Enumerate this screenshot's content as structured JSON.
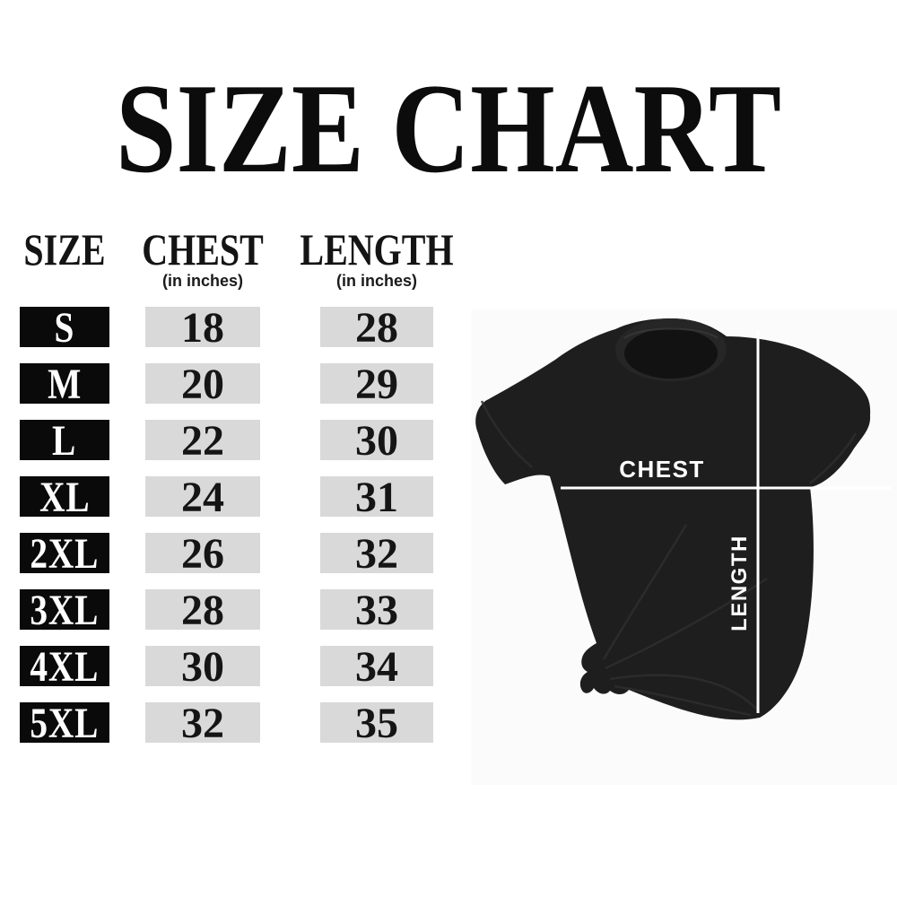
{
  "title": "SIZE CHART",
  "table": {
    "headers": [
      {
        "label": "SIZE",
        "sublabel": ""
      },
      {
        "label": "CHEST",
        "sublabel": "(in inches)"
      },
      {
        "label": "LENGTH",
        "sublabel": "(in inches)"
      }
    ],
    "rows": [
      {
        "size": "S",
        "chest": "18",
        "length": "28"
      },
      {
        "size": "M",
        "chest": "20",
        "length": "29"
      },
      {
        "size": "L",
        "chest": "22",
        "length": "30"
      },
      {
        "size": "XL",
        "chest": "24",
        "length": "31"
      },
      {
        "size": "2XL",
        "chest": "26",
        "length": "32"
      },
      {
        "size": "3XL",
        "chest": "28",
        "length": "33"
      },
      {
        "size": "4XL",
        "chest": "30",
        "length": "34"
      },
      {
        "size": "5XL",
        "chest": "32",
        "length": "35"
      }
    ]
  },
  "diagram": {
    "chest_label": "CHEST",
    "length_label": "LENGTH"
  },
  "colors": {
    "background": "#ffffff",
    "size_box_bg": "#0a0a0a",
    "size_box_text": "#ffffff",
    "value_box_bg": "#d9d9d9",
    "text": "#141414",
    "measure_line": "#ffffff",
    "shirt": "#1e1e1e"
  },
  "chart_data": {
    "type": "table",
    "title": "SIZE CHART",
    "columns": [
      "SIZE",
      "CHEST (in inches)",
      "LENGTH (in inches)"
    ],
    "rows": [
      [
        "S",
        18,
        28
      ],
      [
        "M",
        20,
        29
      ],
      [
        "L",
        22,
        30
      ],
      [
        "XL",
        24,
        31
      ],
      [
        "2XL",
        26,
        32
      ],
      [
        "3XL",
        28,
        33
      ],
      [
        "4XL",
        30,
        34
      ],
      [
        "5XL",
        32,
        35
      ]
    ]
  }
}
